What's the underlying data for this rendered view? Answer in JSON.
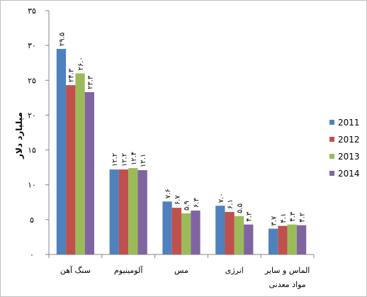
{
  "chart_data": {
    "type": "bar",
    "ylabel": "میلیارد دلار",
    "ylim": [
      0,
      35
    ],
    "yticks": [
      0,
      5,
      10,
      15,
      20,
      25,
      30,
      35
    ],
    "ytick_labels": [
      "۰",
      "۵",
      "۱۰",
      "۱۵",
      "۲۰",
      "۲۵",
      "۳۰",
      "۳۵"
    ],
    "categories": [
      "سنگ آهن",
      "آلومینیوم",
      "مس",
      "انرژی",
      "الماس و سایر مواد معدنی"
    ],
    "category_lines": [
      [
        "سنگ آهن"
      ],
      [
        "آلومینیوم"
      ],
      [
        "مس"
      ],
      [
        "انرژی"
      ],
      [
        "الماس و سایر",
        "مواد معدنی"
      ]
    ],
    "series": [
      {
        "name": "2011",
        "color": "#4f81bd",
        "values": [
          29.5,
          12.2,
          7.6,
          7.0,
          3.7
        ],
        "labels": [
          "۲۹.۵",
          "۱۲.۲",
          "۷.۶",
          "۷.۰",
          "۳.۷"
        ]
      },
      {
        "name": "2012",
        "color": "#c0504d",
        "values": [
          24.3,
          12.2,
          6.7,
          6.1,
          4.1
        ],
        "labels": [
          "۲۴.۳",
          "۱۲.۲",
          "۶.۷",
          "۶.۱",
          "۴.۱"
        ]
      },
      {
        "name": "2013",
        "color": "#9bbb59",
        "values": [
          26.0,
          12.4,
          5.9,
          5.5,
          4.3
        ],
        "labels": [
          "۲۶.۰",
          "۱۲.۴",
          "۵.۹",
          "۵.۵",
          "۴.۳"
        ]
      },
      {
        "name": "2014",
        "color": "#8064a2",
        "values": [
          23.3,
          12.1,
          6.3,
          4.3,
          4.2
        ],
        "labels": [
          "۲۳.۳",
          "۱۲.۱",
          "۶.۳",
          "۴.۳",
          "۴.۲"
        ]
      }
    ],
    "grid": false,
    "legend_position": "right",
    "axis_color": "#868686"
  }
}
